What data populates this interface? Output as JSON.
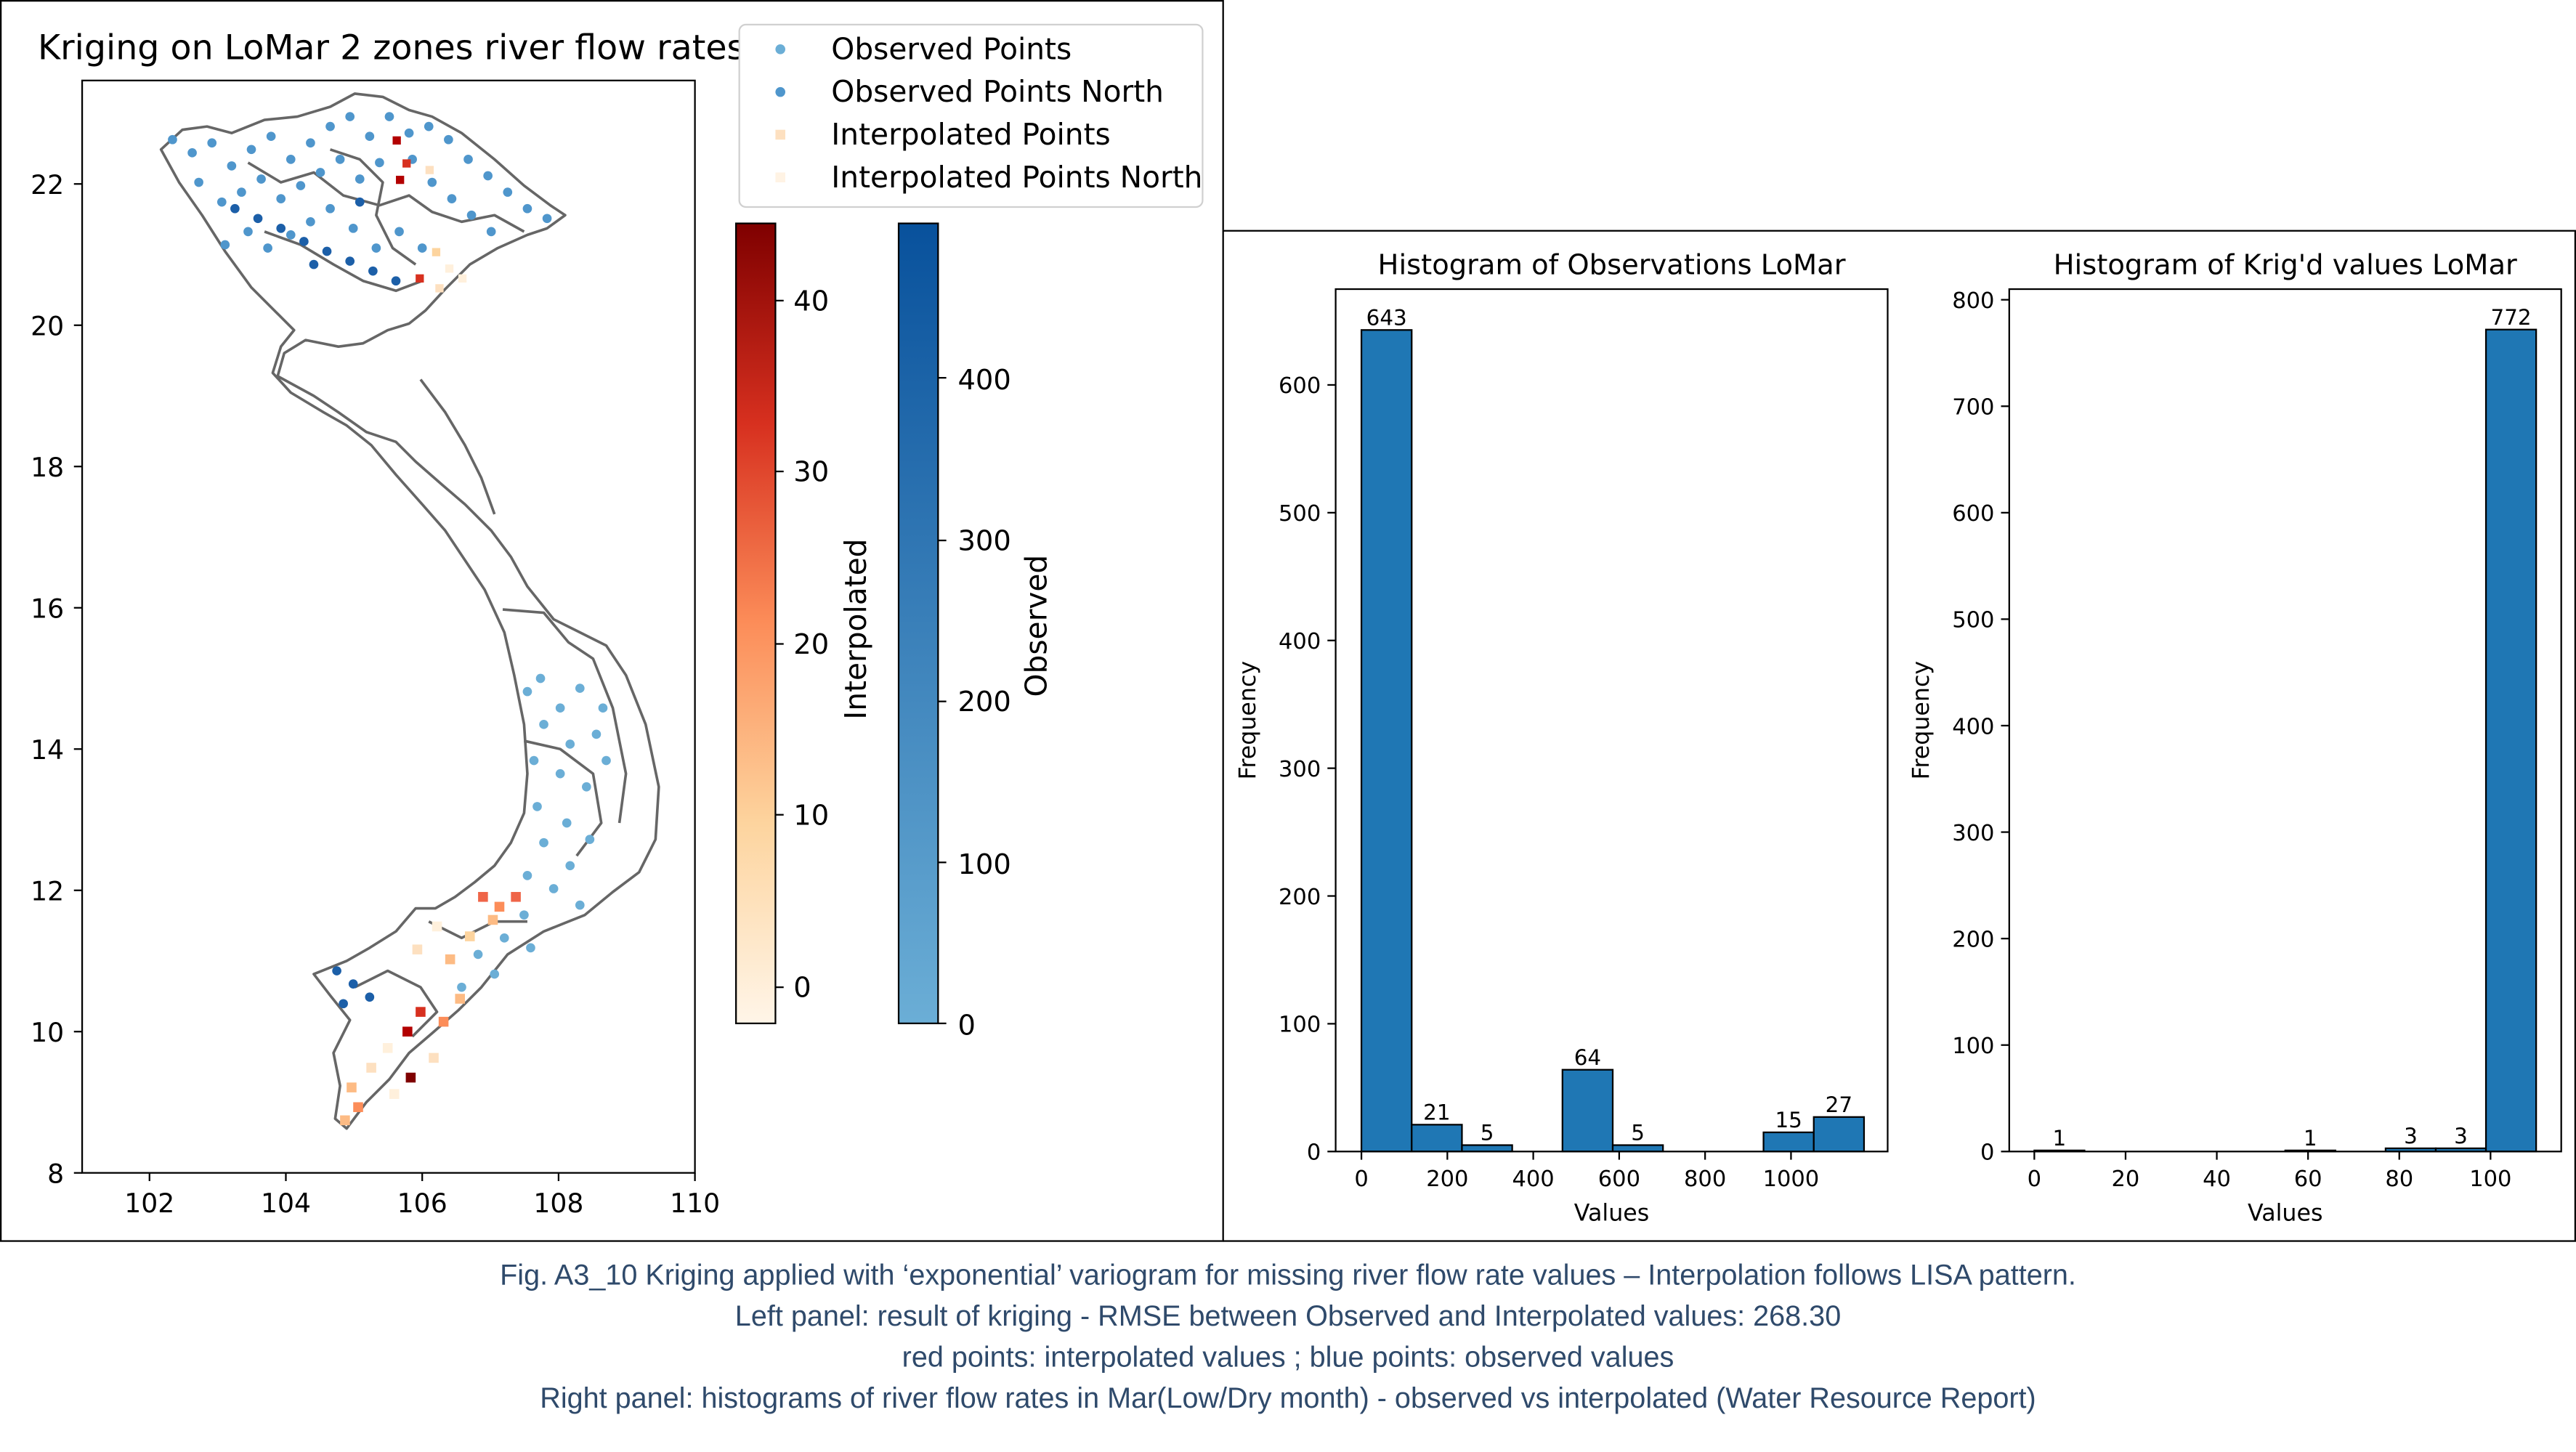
{
  "left_panel": {
    "title": "Kriging on LoMar 2 zones river flow rates",
    "legend": [
      "Observed Points",
      "Observed Points North",
      "Interpolated Points",
      "Interpolated Points North"
    ],
    "x_ticks": [
      "102",
      "104",
      "106",
      "108",
      "110"
    ],
    "y_ticks": [
      "8",
      "10",
      "12",
      "14",
      "16",
      "18",
      "20",
      "22"
    ],
    "colorbar_interp": {
      "label": "Interpolated",
      "ticks": [
        "0",
        "10",
        "20",
        "30",
        "40"
      ],
      "low_color": "#fff5e8",
      "high_color": "#7f0000"
    },
    "colorbar_obs": {
      "label": "Observed",
      "ticks": [
        "0",
        "100",
        "200",
        "300",
        "400"
      ],
      "low_color": "#6baed6",
      "high_color": "#08519c"
    }
  },
  "chart_data": [
    {
      "type": "bar",
      "title": "Histogram of Observations LoMar",
      "xlabel": "Values",
      "ylabel": "Frequency",
      "bins": [
        [
          0,
          117
        ],
        [
          117,
          234
        ],
        [
          234,
          351
        ],
        [
          351,
          468
        ],
        [
          468,
          585
        ],
        [
          585,
          702
        ],
        [
          702,
          819
        ],
        [
          819,
          936
        ],
        [
          936,
          1053
        ],
        [
          1053,
          1170
        ]
      ],
      "values": [
        643,
        21,
        5,
        0,
        64,
        5,
        0,
        0,
        15,
        27
      ],
      "data_labels": [
        "643",
        "21",
        "5",
        "",
        "64",
        "5",
        "",
        "",
        "15",
        "27"
      ],
      "x_ticks": [
        "0",
        "200",
        "400",
        "600",
        "800",
        "1000"
      ],
      "y_ticks": [
        "0",
        "100",
        "200",
        "300",
        "400",
        "500",
        "600"
      ],
      "xlim": [
        -60,
        1225
      ],
      "ylim": [
        0,
        675
      ],
      "bar_color": "#1f77b4"
    },
    {
      "type": "bar",
      "title": "Histogram of Krig'd values LoMar",
      "xlabel": "Values",
      "ylabel": "Frequency",
      "bins": [
        [
          0,
          11
        ],
        [
          11,
          22
        ],
        [
          22,
          33
        ],
        [
          33,
          44
        ],
        [
          44,
          55
        ],
        [
          55,
          66
        ],
        [
          66,
          77
        ],
        [
          77,
          88
        ],
        [
          88,
          99
        ],
        [
          99,
          110
        ]
      ],
      "values": [
        1,
        0,
        0,
        0,
        0,
        1,
        0,
        3,
        3,
        772
      ],
      "data_labels": [
        "1",
        "",
        "",
        "",
        "",
        "1",
        "",
        "3",
        "3",
        "772"
      ],
      "x_ticks": [
        "0",
        "20",
        "40",
        "60",
        "80",
        "100"
      ],
      "y_ticks": [
        "0",
        "100",
        "200",
        "300",
        "400",
        "500",
        "600",
        "700",
        "800"
      ],
      "xlim": [
        -5.5,
        115.5
      ],
      "ylim": [
        0,
        810
      ],
      "bar_color": "#1f77b4"
    }
  ],
  "caption": [
    "Fig. A3_10 Kriging applied with ‘exponential’ variogram for missing river flow rate values – Interpolation follows LISA pattern.",
    "Left panel: result of kriging - RMSE between Observed and Interpolated values: 268.30",
    "red points: interpolated values ; blue points: observed values",
    "Right panel: histograms of river flow rates in Mar(Low/Dry month) - observed vs interpolated (Water Resource Report)"
  ]
}
